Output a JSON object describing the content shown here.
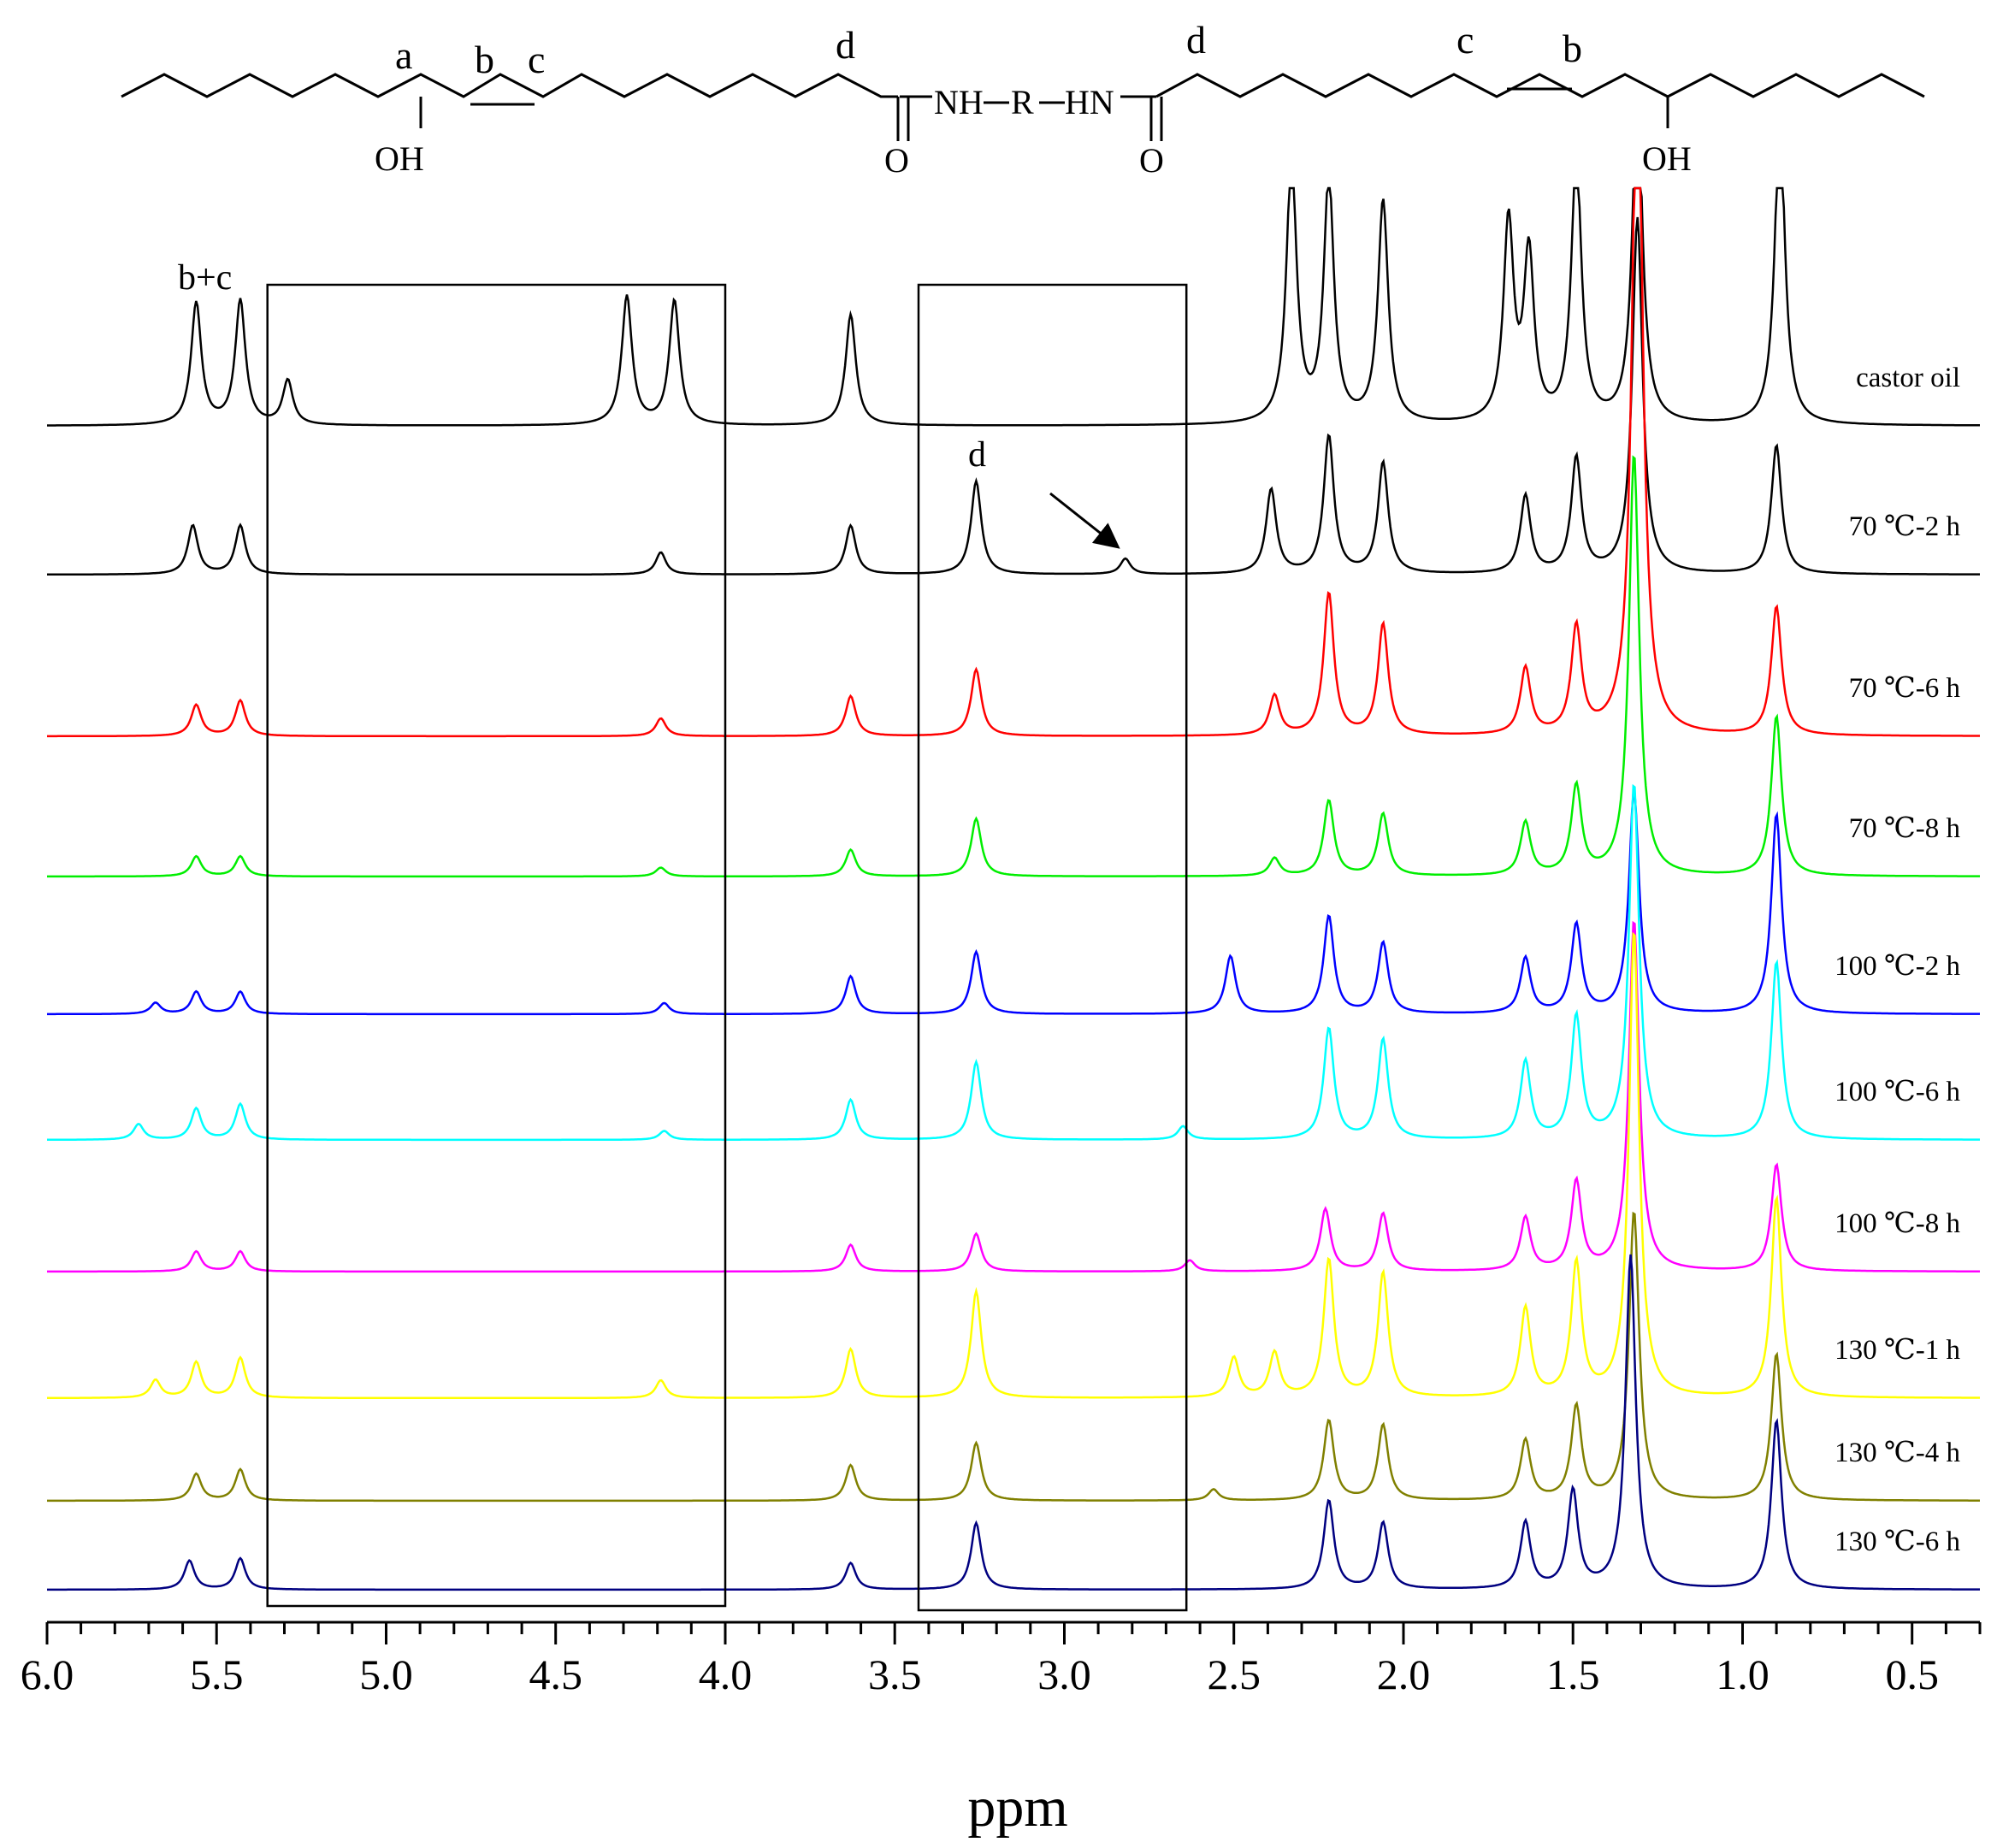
{
  "chart_data": {
    "type": "line",
    "xlabel": "ppm",
    "xlim": [
      6.0,
      0.3
    ],
    "x_reversed": true,
    "x_ticks": [
      "6.0",
      "5.5",
      "5.0",
      "4.5",
      "4.0",
      "3.5",
      "3.0",
      "2.5",
      "2.0",
      "1.5",
      "1.0",
      "0.5"
    ],
    "x_tick_values": [
      6.0,
      5.5,
      5.0,
      4.5,
      4.0,
      3.5,
      3.0,
      2.5,
      2.0,
      1.5,
      1.0,
      0.5
    ],
    "grid": false,
    "legend": "labels at right of each trace",
    "series": [
      {
        "name": "castor oil",
        "color": "#000000",
        "peaks": [
          [
            5.56,
            0.55
          ],
          [
            5.43,
            0.56
          ],
          [
            5.29,
            0.2
          ],
          [
            4.29,
            0.58
          ],
          [
            4.15,
            0.56
          ],
          [
            3.63,
            0.5
          ],
          [
            2.33,
            1.2
          ],
          [
            2.22,
            1.1
          ],
          [
            2.06,
            1.0
          ],
          [
            1.69,
            0.9
          ],
          [
            1.63,
            0.75
          ],
          [
            1.49,
            1.2
          ],
          [
            1.31,
            1.5
          ],
          [
            0.89,
            1.4
          ]
        ]
      },
      {
        "name": "70 ℃-2 h",
        "color": "#000000",
        "peaks": [
          [
            5.57,
            0.22
          ],
          [
            5.43,
            0.22
          ],
          [
            4.19,
            0.1
          ],
          [
            3.63,
            0.22
          ],
          [
            3.26,
            0.42
          ],
          [
            2.82,
            0.07
          ],
          [
            2.39,
            0.38
          ],
          [
            2.22,
            0.62
          ],
          [
            2.06,
            0.5
          ],
          [
            1.64,
            0.35
          ],
          [
            1.49,
            0.52
          ],
          [
            1.31,
            1.6
          ],
          [
            0.9,
            0.58
          ]
        ]
      },
      {
        "name": "70 ℃-6 h",
        "color": "#ff0000",
        "peaks": [
          [
            5.56,
            0.14
          ],
          [
            5.43,
            0.16
          ],
          [
            4.19,
            0.08
          ],
          [
            3.63,
            0.18
          ],
          [
            3.26,
            0.3
          ],
          [
            2.38,
            0.18
          ],
          [
            2.22,
            0.64
          ],
          [
            2.06,
            0.5
          ],
          [
            1.64,
            0.3
          ],
          [
            1.49,
            0.48
          ],
          [
            1.31,
            3.3
          ],
          [
            0.9,
            0.58
          ]
        ]
      },
      {
        "name": "70 ℃-8 h",
        "color": "#00ee00",
        "peaks": [
          [
            5.56,
            0.09
          ],
          [
            5.43,
            0.09
          ],
          [
            4.19,
            0.04
          ],
          [
            3.63,
            0.12
          ],
          [
            3.26,
            0.26
          ],
          [
            2.38,
            0.08
          ],
          [
            2.22,
            0.34
          ],
          [
            2.06,
            0.28
          ],
          [
            1.64,
            0.24
          ],
          [
            1.49,
            0.4
          ],
          [
            1.32,
            1.9
          ],
          [
            0.9,
            0.72
          ]
        ]
      },
      {
        "name": "100 ℃-2 h",
        "color": "#0000ff",
        "peaks": [
          [
            5.68,
            0.05
          ],
          [
            5.56,
            0.1
          ],
          [
            5.43,
            0.1
          ],
          [
            4.18,
            0.05
          ],
          [
            3.63,
            0.17
          ],
          [
            3.26,
            0.28
          ],
          [
            2.51,
            0.26
          ],
          [
            2.22,
            0.44
          ],
          [
            2.06,
            0.32
          ],
          [
            1.64,
            0.25
          ],
          [
            1.49,
            0.4
          ],
          [
            1.32,
            1.0
          ],
          [
            0.9,
            0.9
          ]
        ]
      },
      {
        "name": "100 ℃-6 h",
        "color": "#00ffff",
        "peaks": [
          [
            5.73,
            0.07
          ],
          [
            5.56,
            0.14
          ],
          [
            5.43,
            0.16
          ],
          [
            4.18,
            0.04
          ],
          [
            3.63,
            0.18
          ],
          [
            3.26,
            0.35
          ],
          [
            2.65,
            0.06
          ],
          [
            2.22,
            0.5
          ],
          [
            2.06,
            0.45
          ],
          [
            1.64,
            0.35
          ],
          [
            1.49,
            0.55
          ],
          [
            1.32,
            1.6
          ],
          [
            0.9,
            0.8
          ]
        ]
      },
      {
        "name": "100 ℃-8 h",
        "color": "#ff00ff",
        "peaks": [
          [
            5.56,
            0.09
          ],
          [
            5.43,
            0.09
          ],
          [
            3.63,
            0.12
          ],
          [
            3.26,
            0.17
          ],
          [
            2.63,
            0.05
          ],
          [
            2.23,
            0.28
          ],
          [
            2.06,
            0.26
          ],
          [
            1.64,
            0.24
          ],
          [
            1.49,
            0.4
          ],
          [
            1.32,
            1.58
          ],
          [
            0.9,
            0.48
          ]
        ]
      },
      {
        "name": "130 ℃-1 h",
        "color": "#ffff00",
        "peaks": [
          [
            5.68,
            0.08
          ],
          [
            5.56,
            0.16
          ],
          [
            5.43,
            0.18
          ],
          [
            4.19,
            0.08
          ],
          [
            3.63,
            0.22
          ],
          [
            3.26,
            0.48
          ],
          [
            2.5,
            0.18
          ],
          [
            2.38,
            0.2
          ],
          [
            2.22,
            0.62
          ],
          [
            2.06,
            0.56
          ],
          [
            1.64,
            0.4
          ],
          [
            1.49,
            0.6
          ],
          [
            1.32,
            2.1
          ],
          [
            0.9,
            0.9
          ]
        ]
      },
      {
        "name": "130 ℃-4 h",
        "color": "#808000",
        "peaks": [
          [
            5.56,
            0.12
          ],
          [
            5.43,
            0.14
          ],
          [
            3.63,
            0.16
          ],
          [
            3.26,
            0.26
          ],
          [
            2.56,
            0.05
          ],
          [
            2.22,
            0.36
          ],
          [
            2.06,
            0.34
          ],
          [
            1.64,
            0.27
          ],
          [
            1.49,
            0.42
          ],
          [
            1.32,
            1.3
          ],
          [
            0.9,
            0.66
          ]
        ]
      },
      {
        "name": "130 ℃-6 h",
        "color": "#000080",
        "peaks": [
          [
            5.58,
            0.13
          ],
          [
            5.43,
            0.14
          ],
          [
            3.63,
            0.12
          ],
          [
            3.26,
            0.3
          ],
          [
            2.22,
            0.4
          ],
          [
            2.06,
            0.3
          ],
          [
            1.64,
            0.3
          ],
          [
            1.5,
            0.44
          ],
          [
            1.33,
            1.5
          ],
          [
            0.9,
            0.76
          ]
        ]
      }
    ],
    "annotations": {
      "peak_bc": "b+c",
      "peak_d": "d",
      "boxes_ppm": [
        [
          5.35,
          4.0
        ],
        [
          3.43,
          2.64
        ]
      ],
      "arrow_target_ppm": 2.85
    }
  },
  "structure": {
    "label_a": "a",
    "label_b_left": "b",
    "label_c_left": "c",
    "label_d_left": "d",
    "label_d_right": "d",
    "label_c_right": "c",
    "label_b_right": "b",
    "oh_left": "OH",
    "oh_right": "OH",
    "o_left": "O",
    "o_right": "O",
    "linker_nh": "NH",
    "linker_r": "R",
    "linker_hn": "HN"
  }
}
